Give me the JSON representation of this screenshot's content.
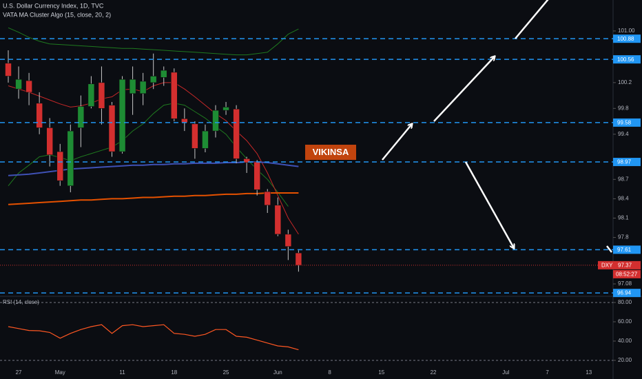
{
  "chart_data": [
    {
      "type": "candlestick",
      "title": "U.S. Dollar Currency Index, 1D, TVC",
      "subtitle": "VATA MA Cluster Algo (15, close, 20, 2)",
      "annotation": "VIKINSA",
      "symbol": "DXY",
      "last_price": 97.37,
      "countdown": "08:52:27",
      "open": [
        100.5,
        100.1,
        100.23,
        99.88,
        99.5,
        99.13,
        98.6,
        99.5,
        99.83,
        100.2,
        99.85,
        99.13,
        100.03,
        100.03,
        100.2,
        100.28,
        100.36,
        99.64,
        99.56,
        99.18,
        99.45,
        99.77,
        99.79,
        99.02,
        98.97,
        98.51,
        98.3,
        97.85,
        97.56
      ],
      "high": [
        100.7,
        100.45,
        100.35,
        100.05,
        99.65,
        99.25,
        99.55,
        100.0,
        100.3,
        100.45,
        99.9,
        100.3,
        100.45,
        100.35,
        100.65,
        100.45,
        100.42,
        99.8,
        99.6,
        99.55,
        99.85,
        99.9,
        99.85,
        99.05,
        99.0,
        98.55,
        98.42,
        97.92,
        97.6
      ],
      "low": [
        100.2,
        99.95,
        99.85,
        99.4,
        98.9,
        98.6,
        98.5,
        99.2,
        99.8,
        99.55,
        99.05,
        99.1,
        99.7,
        99.85,
        100.1,
        100.15,
        99.6,
        99.45,
        99.02,
        99.12,
        99.35,
        99.7,
        98.95,
        98.8,
        98.45,
        98.18,
        97.82,
        97.45,
        97.27
      ],
      "close": [
        100.3,
        100.25,
        100.05,
        99.5,
        99.08,
        98.68,
        99.45,
        99.83,
        100.18,
        99.8,
        99.13,
        100.25,
        100.25,
        100.22,
        100.3,
        100.39,
        99.64,
        99.58,
        99.18,
        99.45,
        99.77,
        99.82,
        99.02,
        98.96,
        98.54,
        98.3,
        97.85,
        97.66,
        97.37
      ],
      "up_color": "#1e8c34",
      "down_color": "#d32f2f",
      "series": [
        {
          "color": "#1f7a1f",
          "values": [
            101.05,
            100.98,
            100.9,
            100.84,
            100.8,
            100.79,
            100.78,
            100.77,
            100.76,
            100.75,
            100.74,
            100.73,
            100.73,
            100.72,
            100.71,
            100.7,
            100.69,
            100.68,
            100.67,
            100.66,
            100.65,
            100.64,
            100.63,
            100.63,
            100.65,
            100.67,
            100.8,
            100.95,
            101.03
          ]
        },
        {
          "color": "#1f7a1f",
          "values": [
            98.6,
            98.8,
            98.92,
            99.05,
            99.08,
            99.04,
            98.99,
            99.05,
            99.1,
            99.15,
            99.2,
            99.3,
            99.45,
            99.56,
            99.72,
            99.85,
            99.88,
            99.85,
            99.75,
            99.65,
            99.52,
            99.4,
            99.2,
            99.02,
            98.85,
            98.7,
            98.5,
            98.28,
            null
          ]
        },
        {
          "color": "#c62828",
          "values": [
            100.15,
            100.1,
            100.05,
            99.99,
            99.93,
            99.87,
            99.82,
            99.84,
            99.88,
            99.95,
            99.98,
            100.09,
            100.1,
            100.06,
            100.15,
            100.2,
            100.2,
            100.1,
            99.98,
            99.85,
            99.72,
            99.61,
            99.45,
            99.3,
            99.1,
            98.8,
            98.45,
            98.1,
            97.85
          ]
        },
        {
          "color": "#3f51b5",
          "values": [
            98.76,
            98.77,
            98.78,
            98.8,
            98.82,
            98.84,
            98.86,
            98.87,
            98.88,
            98.89,
            98.9,
            98.91,
            98.92,
            98.92,
            98.93,
            98.93,
            98.94,
            98.94,
            98.95,
            98.95,
            98.95,
            98.96,
            98.96,
            98.97,
            98.97,
            98.96,
            98.94,
            98.92,
            98.9
          ]
        },
        {
          "color": "#e65100",
          "values": [
            98.31,
            98.32,
            98.33,
            98.34,
            98.35,
            98.36,
            98.37,
            98.38,
            98.38,
            98.39,
            98.4,
            98.4,
            98.41,
            98.42,
            98.42,
            98.43,
            98.44,
            98.44,
            98.45,
            98.45,
            98.46,
            98.47,
            98.47,
            98.48,
            98.48,
            98.49,
            98.49,
            98.49,
            98.49
          ]
        }
      ],
      "levels": [
        100.88,
        100.56,
        99.58,
        98.97,
        97.61,
        96.94
      ],
      "level_color": "#2196f3",
      "ylim": [
        96.92,
        101.48
      ],
      "yticks": [
        {
          "value": 101,
          "label": "101.00"
        },
        100.2,
        99.8,
        99.4,
        98.7,
        98.4,
        98.1,
        97.8,
        97.08
      ],
      "xticks": [
        {
          "value": 1,
          "label": "27"
        },
        {
          "value": 5,
          "label": "May"
        },
        {
          "value": 11,
          "label": "11"
        },
        {
          "value": 16,
          "label": "18"
        },
        {
          "value": 21,
          "label": "25"
        },
        {
          "value": 26,
          "label": "Jun"
        },
        {
          "value": 31,
          "label": "8"
        },
        {
          "value": 36,
          "label": "15"
        },
        {
          "value": 41,
          "label": "22"
        },
        {
          "value": 48,
          "label": "Jul"
        },
        {
          "value": 52,
          "label": "7"
        },
        {
          "value": 56,
          "label": "13"
        }
      ]
    },
    {
      "type": "line",
      "title": "RSI (14, close)",
      "color": "#ff5722",
      "values": [
        55,
        53,
        51,
        50.7,
        49,
        43,
        48,
        52,
        55,
        57,
        48,
        56,
        57,
        55,
        56,
        57,
        48,
        47,
        45,
        47,
        52,
        52,
        45,
        44,
        41,
        38,
        35,
        34,
        31
      ],
      "band_lines": [
        80,
        20
      ],
      "ylim": [
        0.7,
        86.4
      ],
      "yticks": [
        {
          "value": 80,
          "label": "80.00"
        },
        {
          "value": 60,
          "label": "60.00"
        },
        {
          "value": 40,
          "label": "40.00"
        },
        {
          "value": 20,
          "label": "20.00"
        }
      ]
    }
  ]
}
